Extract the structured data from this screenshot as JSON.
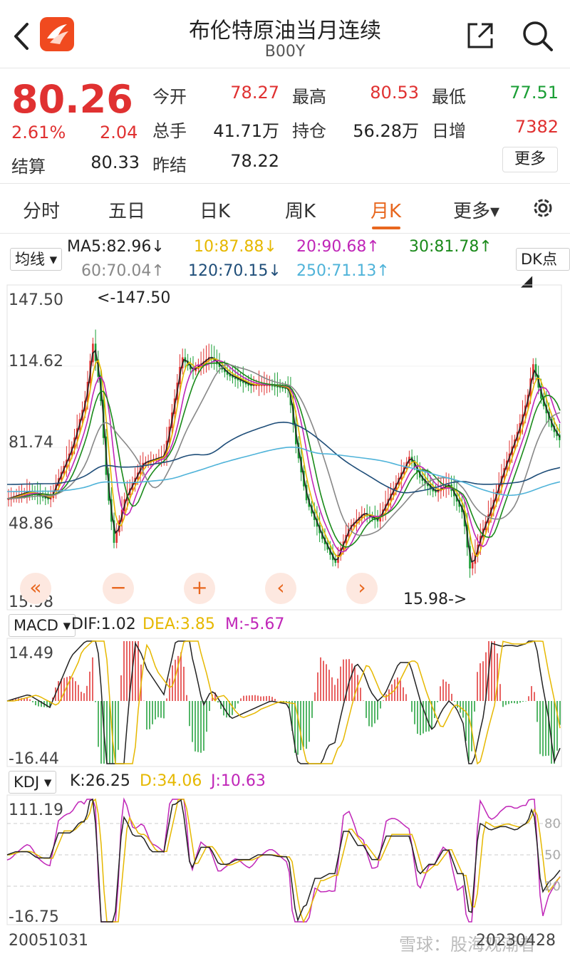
{
  "header": {
    "title": "布伦特原油当月连续",
    "code": "B00Y",
    "back_icon": "chevron-left-icon",
    "share_icon": "share-icon",
    "search_icon": "search-icon"
  },
  "quote": {
    "price": "80.26",
    "change_pct": "2.61%",
    "change": "2.04",
    "fields": [
      {
        "label": "今开",
        "value": "78.27",
        "color": "#e03131"
      },
      {
        "label": "最高",
        "value": "80.53",
        "color": "#e03131"
      },
      {
        "label": "最低",
        "value": "77.51",
        "color": "#1a9e35"
      },
      {
        "label": "总手",
        "value": "41.71万",
        "color": "#222222"
      },
      {
        "label": "持仓",
        "value": "56.28万",
        "color": "#222222"
      },
      {
        "label": "日增",
        "value": "7382",
        "color": "#e03131"
      },
      {
        "label": "结算",
        "value": "80.33",
        "color": "#222222"
      },
      {
        "label": "昨结",
        "value": "78.22",
        "color": "#222222"
      }
    ],
    "more_label": "更多"
  },
  "tabs": [
    {
      "label": "分时"
    },
    {
      "label": "五日"
    },
    {
      "label": "日K"
    },
    {
      "label": "周K"
    },
    {
      "label": "月K"
    },
    {
      "label": "更多▾"
    }
  ],
  "active_tab": "月K",
  "ma_legend": {
    "button": "均线",
    "dk_button": "DK点",
    "items": [
      {
        "text": "MA5:82.96↓",
        "color": "#222222"
      },
      {
        "text": "10:87.88↓",
        "color": "#e6b800"
      },
      {
        "text": "20:90.68↑",
        "color": "#c026b8"
      },
      {
        "text": "30:81.78↑",
        "color": "#1a8a1a"
      },
      {
        "text": "60:70.04↑",
        "color": "#888888"
      },
      {
        "text": "120:70.15↓",
        "color": "#1f4e79"
      },
      {
        "text": "250:71.13↑",
        "color": "#4fb3d9"
      }
    ]
  },
  "main_chart": {
    "y_labels": [
      "147.50",
      "114.62",
      "81.74",
      "48.86",
      "15.98"
    ],
    "max_marker": "<-147.50",
    "min_marker": "15.98->",
    "controls": [
      "«",
      "−",
      "+",
      "‹",
      "›"
    ]
  },
  "macd": {
    "button": "MACD",
    "dif": "DIF:1.02",
    "dea": "DEA:3.85",
    "m": "M:-5.67",
    "y_top": "14.49",
    "y_bottom": "-16.44"
  },
  "kdj": {
    "button": "KDJ",
    "k": "K:26.25",
    "d": "D:34.06",
    "j": "J:10.63",
    "y_top": "111.19",
    "y_bottom": "-16.75",
    "ref_80": "80",
    "ref_50": "50",
    "ref_20": "20"
  },
  "footer": {
    "start_date": "20051031",
    "end_date": "20230428",
    "watermark": "雪球：股海观潮者"
  },
  "colors": {
    "up": "#e03131",
    "down": "#1a9e35",
    "accent": "#e8671f"
  }
}
